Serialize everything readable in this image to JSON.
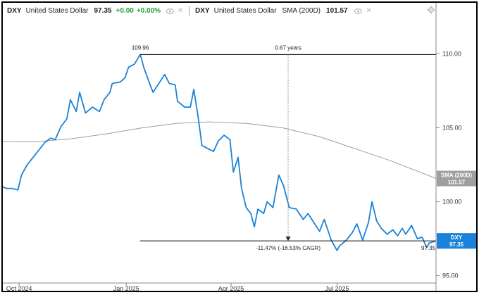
{
  "legend": {
    "dxy": {
      "ticker": "DXY",
      "name": "United States Dollar",
      "value": "97.35",
      "change": "+0.00",
      "change_pct": "+0.00%",
      "icons": [
        "eye-icon",
        "close-icon"
      ]
    },
    "sma": {
      "ticker": "DXY",
      "name": "United States Dollar",
      "indicator": "SMA (200D)",
      "value": "101.57",
      "icons": [
        "eye-icon",
        "close-icon"
      ]
    },
    "settings_icon": "gear-icon"
  },
  "colors": {
    "price_line": "#1a82d8",
    "sma_line": "#9e9e9e",
    "sma_badge": "#9e9e9e",
    "price_badge": "#1a82d8",
    "axis": "#888888",
    "change_positive": "#1a9e3a"
  },
  "annotations": {
    "peak_value": "109.96",
    "duration": "0.67 years",
    "drawdown": "-11.47% (-16.53% CAGR)",
    "end_value": "97.35"
  },
  "badges": {
    "sma_label": "SMA (200D)",
    "sma_value": "101.57",
    "price_label": "DXY",
    "price_value": "97.35"
  },
  "chart_data": {
    "type": "line",
    "x_ticks": [
      "Oct 2024",
      "Jan 2025",
      "Apr 2025",
      "Jul 2025"
    ],
    "y_ticks": [
      95.0,
      100.0,
      105.0,
      110.0
    ],
    "ylim": [
      94.5,
      112.5
    ],
    "xlim": [
      "2024-09-17",
      "2025-09-24"
    ],
    "grid": false,
    "legend_position": "top-left",
    "series": [
      {
        "name": "DXY",
        "points": [
          [
            "2024-09-17",
            101.0
          ],
          [
            "2024-09-20",
            100.9
          ],
          [
            "2024-09-25",
            100.9
          ],
          [
            "2024-09-30",
            100.8
          ],
          [
            "2024-10-03",
            101.8
          ],
          [
            "2024-10-08",
            102.5
          ],
          [
            "2024-10-14",
            103.1
          ],
          [
            "2024-10-18",
            103.5
          ],
          [
            "2024-10-23",
            104.0
          ],
          [
            "2024-10-28",
            104.3
          ],
          [
            "2024-11-01",
            104.2
          ],
          [
            "2024-11-06",
            105.1
          ],
          [
            "2024-11-11",
            105.6
          ],
          [
            "2024-11-14",
            106.9
          ],
          [
            "2024-11-19",
            106.1
          ],
          [
            "2024-11-22",
            107.4
          ],
          [
            "2024-11-27",
            106.0
          ],
          [
            "2024-12-03",
            106.4
          ],
          [
            "2024-12-09",
            106.1
          ],
          [
            "2024-12-13",
            106.9
          ],
          [
            "2024-12-18",
            107.4
          ],
          [
            "2024-12-20",
            108.0
          ],
          [
            "2024-12-27",
            108.1
          ],
          [
            "2024-12-31",
            108.4
          ],
          [
            "2025-01-03",
            109.1
          ],
          [
            "2025-01-08",
            109.3
          ],
          [
            "2025-01-13",
            109.96
          ],
          [
            "2025-01-16",
            109.1
          ],
          [
            "2025-01-21",
            108.0
          ],
          [
            "2025-01-24",
            107.4
          ],
          [
            "2025-01-29",
            108.0
          ],
          [
            "2025-02-03",
            108.6
          ],
          [
            "2025-02-07",
            108.0
          ],
          [
            "2025-02-12",
            107.9
          ],
          [
            "2025-02-14",
            106.8
          ],
          [
            "2025-02-20",
            106.4
          ],
          [
            "2025-02-25",
            106.4
          ],
          [
            "2025-02-28",
            107.6
          ],
          [
            "2025-03-04",
            105.6
          ],
          [
            "2025-03-07",
            103.8
          ],
          [
            "2025-03-12",
            103.6
          ],
          [
            "2025-03-17",
            103.4
          ],
          [
            "2025-03-21",
            104.1
          ],
          [
            "2025-03-26",
            104.5
          ],
          [
            "2025-03-31",
            104.2
          ],
          [
            "2025-04-03",
            102.0
          ],
          [
            "2025-04-07",
            103.0
          ],
          [
            "2025-04-10",
            100.9
          ],
          [
            "2025-04-14",
            99.6
          ],
          [
            "2025-04-18",
            99.2
          ],
          [
            "2025-04-21",
            98.3
          ],
          [
            "2025-04-24",
            99.5
          ],
          [
            "2025-04-29",
            99.2
          ],
          [
            "2025-05-02",
            100.0
          ],
          [
            "2025-05-07",
            99.6
          ],
          [
            "2025-05-12",
            101.8
          ],
          [
            "2025-05-16",
            101.1
          ],
          [
            "2025-05-21",
            99.6
          ],
          [
            "2025-05-27",
            99.5
          ],
          [
            "2025-06-02",
            98.8
          ],
          [
            "2025-06-06",
            99.2
          ],
          [
            "2025-06-11",
            98.6
          ],
          [
            "2025-06-16",
            98.0
          ],
          [
            "2025-06-20",
            98.8
          ],
          [
            "2025-06-26",
            97.4
          ],
          [
            "2025-07-01",
            96.7
          ],
          [
            "2025-07-03",
            97.0
          ],
          [
            "2025-07-09",
            97.4
          ],
          [
            "2025-07-14",
            97.9
          ],
          [
            "2025-07-18",
            98.5
          ],
          [
            "2025-07-23",
            97.4
          ],
          [
            "2025-07-28",
            98.6
          ],
          [
            "2025-07-31",
            100.0
          ],
          [
            "2025-08-04",
            98.7
          ],
          [
            "2025-08-08",
            98.2
          ],
          [
            "2025-08-13",
            97.8
          ],
          [
            "2025-08-18",
            98.1
          ],
          [
            "2025-08-22",
            97.7
          ],
          [
            "2025-08-26",
            98.2
          ],
          [
            "2025-08-29",
            97.8
          ],
          [
            "2025-09-03",
            98.4
          ],
          [
            "2025-09-08",
            97.5
          ],
          [
            "2025-09-12",
            97.6
          ],
          [
            "2025-09-16",
            96.9
          ],
          [
            "2025-09-18",
            97.2
          ],
          [
            "2025-09-24",
            97.35
          ]
        ]
      },
      {
        "name": "SMA (200D)",
        "points": [
          [
            "2024-09-17",
            104.08
          ],
          [
            "2024-10-14",
            104.05
          ],
          [
            "2024-11-14",
            104.25
          ],
          [
            "2024-12-16",
            104.6
          ],
          [
            "2025-01-15",
            105.0
          ],
          [
            "2025-02-13",
            105.3
          ],
          [
            "2025-03-13",
            105.4
          ],
          [
            "2025-04-14",
            105.3
          ],
          [
            "2025-05-15",
            105.0
          ],
          [
            "2025-06-16",
            104.4
          ],
          [
            "2025-07-16",
            103.6
          ],
          [
            "2025-08-15",
            102.8
          ],
          [
            "2025-09-24",
            101.57
          ]
        ]
      }
    ]
  }
}
